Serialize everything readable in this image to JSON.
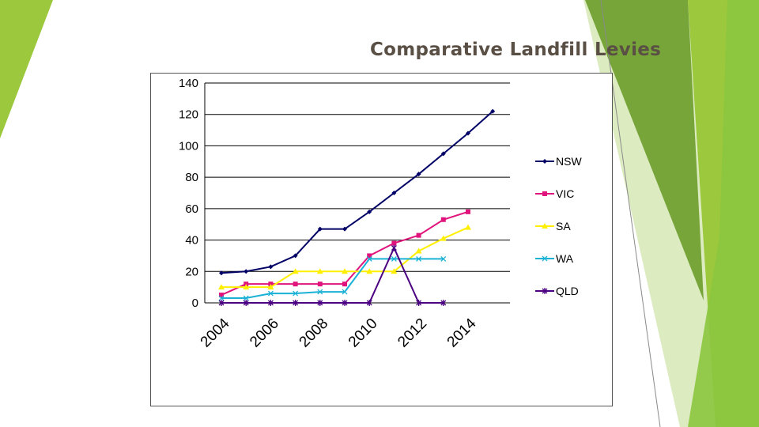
{
  "slide": {
    "title": "Comparative Landfill Levies"
  },
  "theme": {
    "green_light": "#9bc83c",
    "green_mid": "#77a53a",
    "green_dark": "#5e8f30",
    "title_color": "#5a4f44"
  },
  "chart_data": {
    "type": "line",
    "title": "",
    "xlabel": "",
    "ylabel": "",
    "x": [
      2004,
      2005,
      2006,
      2007,
      2008,
      2009,
      2010,
      2011,
      2012,
      2013,
      2014,
      2015
    ],
    "xtick_labels": [
      "2004",
      "2006",
      "2008",
      "2010",
      "2012",
      "2014"
    ],
    "xtick_values": [
      2004,
      2006,
      2008,
      2010,
      2012,
      2014
    ],
    "yticks": [
      0,
      20,
      40,
      60,
      80,
      100,
      120,
      140
    ],
    "ylim": [
      0,
      140
    ],
    "grid": "horizontal",
    "legend": "right",
    "series": [
      {
        "name": "NSW",
        "color": "#000066",
        "marker": "diamond",
        "values": [
          19,
          20,
          23,
          30,
          47,
          47,
          58,
          70,
          82,
          95,
          108,
          122
        ]
      },
      {
        "name": "VIC",
        "color": "#e0147c",
        "marker": "square",
        "values": [
          5,
          12,
          12,
          12,
          12,
          12,
          30,
          38,
          43,
          53,
          58,
          null
        ]
      },
      {
        "name": "SA",
        "color": "#ffef00",
        "marker": "triangle",
        "values": [
          10,
          10,
          10,
          20,
          20,
          20,
          20,
          20,
          33,
          41,
          48,
          null
        ]
      },
      {
        "name": "WA",
        "color": "#1ab1d6",
        "marker": "x",
        "values": [
          3,
          3,
          6,
          6,
          7,
          7,
          28,
          28,
          28,
          28,
          null,
          null
        ]
      },
      {
        "name": "QLD",
        "color": "#4b0082",
        "marker": "star",
        "values": [
          0,
          0,
          0,
          0,
          0,
          0,
          0,
          35,
          0,
          0,
          null,
          null
        ]
      }
    ]
  }
}
